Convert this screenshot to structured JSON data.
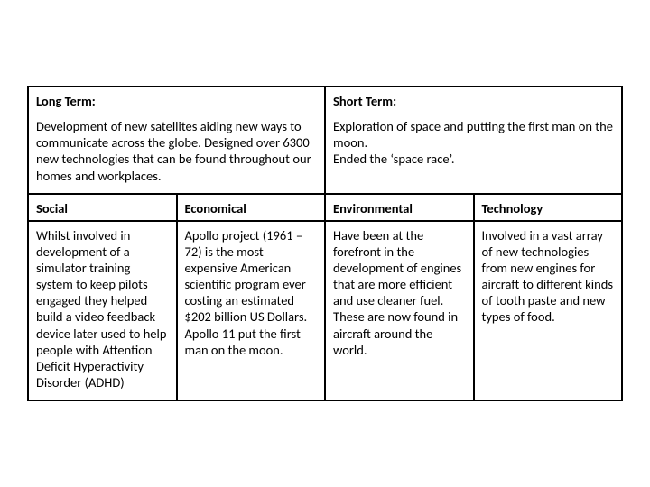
{
  "table": {
    "border_color": "#000000",
    "background_color": "#ffffff",
    "text_color": "#000000",
    "font_family": "Calibri, Arial, sans-serif",
    "header_font_weight": "bold",
    "body_font_size_pt": 11,
    "row1": {
      "left": {
        "title": "Long Term:",
        "body": "Development of new satellites aiding new ways to communicate across the globe. Designed over 6300 new technologies that can be found throughout our homes and workplaces."
      },
      "right": {
        "title": "Short Term:",
        "body": "Exploration of space and putting the first man on the moon.\nEnded the ‘space race’."
      }
    },
    "row2": {
      "c1": "Social",
      "c2": "Economical",
      "c3": "Environmental",
      "c4": "Technology"
    },
    "row3": {
      "c1": "Whilst involved in development of a simulator training system to keep pilots engaged they helped build a video feedback device later used to help people with Attention Deficit Hyperactivity Disorder (ADHD)",
      "c2": "Apollo project (1961 – 72) is the most expensive American scientific program ever costing an estimated $202 billion US Dollars. Apollo 11 put the first man on the moon.",
      "c3": "Have been at the forefront in the development of engines that are more efficient and use cleaner fuel. These are now found in aircraft around the world.",
      "c4": "Involved in a vast array of new technologies from new engines for aircraft to different kinds of tooth paste and new types of food."
    }
  }
}
